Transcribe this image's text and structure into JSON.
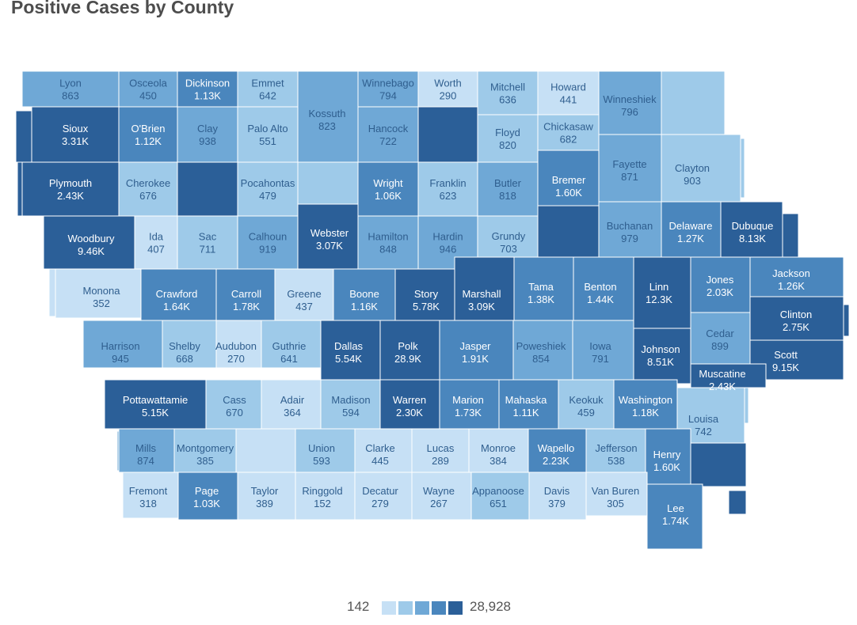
{
  "title": "Positive Cases by County",
  "legend": {
    "min_label": "142",
    "max_label": "28,928",
    "colors": [
      "#c6e0f5",
      "#9ecae9",
      "#6fa8d6",
      "#4a86bd",
      "#2b5f98"
    ]
  },
  "colors": {
    "text_dark": "#ffffff",
    "text_light": "#2f5e8e",
    "border": "#ffffff"
  },
  "counties": [
    {
      "id": "lyon",
      "name": "Lyon",
      "value": "863"
    },
    {
      "id": "osceola",
      "name": "Osceola",
      "value": "450"
    },
    {
      "id": "dickinson",
      "name": "Dickinson",
      "value": "1.13K"
    },
    {
      "id": "emmet",
      "name": "Emmet",
      "value": "642"
    },
    {
      "id": "kossuth",
      "name": "Kossuth",
      "value": "823"
    },
    {
      "id": "winnebago",
      "name": "Winnebago",
      "value": "794"
    },
    {
      "id": "worth",
      "name": "Worth",
      "value": "290"
    },
    {
      "id": "mitchell",
      "name": "Mitchell",
      "value": "636"
    },
    {
      "id": "howard",
      "name": "Howard",
      "value": "441"
    },
    {
      "id": "winneshiek",
      "name": "Winneshiek",
      "value": "796"
    },
    {
      "id": "allamakee",
      "name": "",
      "value": ""
    },
    {
      "id": "sioux",
      "name": "Sioux",
      "value": "3.31K"
    },
    {
      "id": "obrien",
      "name": "O'Brien",
      "value": "1.12K"
    },
    {
      "id": "clay",
      "name": "Clay",
      "value": "938"
    },
    {
      "id": "paloalto",
      "name": "Palo Alto",
      "value": "551"
    },
    {
      "id": "hancock",
      "name": "Hancock",
      "value": "722"
    },
    {
      "id": "cerrogordo",
      "name": "",
      "value": ""
    },
    {
      "id": "floyd",
      "name": "Floyd",
      "value": "820"
    },
    {
      "id": "chickasaw",
      "name": "Chickasaw",
      "value": "682"
    },
    {
      "id": "fayette",
      "name": "Fayette",
      "value": "871"
    },
    {
      "id": "clayton",
      "name": "Clayton",
      "value": "903"
    },
    {
      "id": "plymouth",
      "name": "Plymouth",
      "value": "2.43K"
    },
    {
      "id": "cherokee",
      "name": "Cherokee",
      "value": "676"
    },
    {
      "id": "buenavista",
      "name": "",
      "value": ""
    },
    {
      "id": "pocahontas",
      "name": "Pocahontas",
      "value": "479"
    },
    {
      "id": "humboldt",
      "name": "",
      "value": ""
    },
    {
      "id": "wright",
      "name": "Wright",
      "value": "1.06K"
    },
    {
      "id": "franklin",
      "name": "Franklin",
      "value": "623"
    },
    {
      "id": "butler",
      "name": "Butler",
      "value": "818"
    },
    {
      "id": "bremer",
      "name": "Bremer",
      "value": "1.60K"
    },
    {
      "id": "blackhawk",
      "name": "",
      "value": ""
    },
    {
      "id": "buchanan",
      "name": "Buchanan",
      "value": "979"
    },
    {
      "id": "delaware",
      "name": "Delaware",
      "value": "1.27K"
    },
    {
      "id": "dubuque",
      "name": "Dubuque",
      "value": "8.13K"
    },
    {
      "id": "woodbury",
      "name": "Woodbury",
      "value": "9.46K"
    },
    {
      "id": "ida",
      "name": "Ida",
      "value": "407"
    },
    {
      "id": "sac",
      "name": "Sac",
      "value": "711"
    },
    {
      "id": "calhoun",
      "name": "Calhoun",
      "value": "919"
    },
    {
      "id": "webster",
      "name": "Webster",
      "value": "3.07K"
    },
    {
      "id": "hamilton",
      "name": "Hamilton",
      "value": "848"
    },
    {
      "id": "hardin",
      "name": "Hardin",
      "value": "946"
    },
    {
      "id": "grundy",
      "name": "Grundy",
      "value": "703"
    },
    {
      "id": "monona",
      "name": "Monona",
      "value": "352"
    },
    {
      "id": "crawford",
      "name": "Crawford",
      "value": "1.64K"
    },
    {
      "id": "carroll",
      "name": "Carroll",
      "value": "1.78K"
    },
    {
      "id": "greene",
      "name": "Greene",
      "value": "437"
    },
    {
      "id": "boone",
      "name": "Boone",
      "value": "1.16K"
    },
    {
      "id": "story",
      "name": "Story",
      "value": "5.78K"
    },
    {
      "id": "marshall",
      "name": "Marshall",
      "value": "3.09K"
    },
    {
      "id": "tama",
      "name": "Tama",
      "value": "1.38K"
    },
    {
      "id": "benton",
      "name": "Benton",
      "value": "1.44K"
    },
    {
      "id": "linn",
      "name": "Linn",
      "value": "12.3K"
    },
    {
      "id": "jones",
      "name": "Jones",
      "value": "2.03K"
    },
    {
      "id": "jackson",
      "name": "Jackson",
      "value": "1.26K"
    },
    {
      "id": "clinton",
      "name": "Clinton",
      "value": "2.75K"
    },
    {
      "id": "harrison",
      "name": "Harrison",
      "value": "945"
    },
    {
      "id": "shelby",
      "name": "Shelby",
      "value": "668"
    },
    {
      "id": "audubon",
      "name": "Audubon",
      "value": "270"
    },
    {
      "id": "guthrie",
      "name": "Guthrie",
      "value": "641"
    },
    {
      "id": "dallas",
      "name": "Dallas",
      "value": "5.54K"
    },
    {
      "id": "polk",
      "name": "Polk",
      "value": "28.9K"
    },
    {
      "id": "jasper",
      "name": "Jasper",
      "value": "1.91K"
    },
    {
      "id": "poweshiek",
      "name": "Poweshiek",
      "value": "854"
    },
    {
      "id": "iowa",
      "name": "Iowa",
      "value": "791"
    },
    {
      "id": "johnson",
      "name": "Johnson",
      "value": "8.51K"
    },
    {
      "id": "cedar",
      "name": "Cedar",
      "value": "899"
    },
    {
      "id": "scott",
      "name": "Scott",
      "value": "9.15K"
    },
    {
      "id": "muscatine",
      "name": "Muscatine",
      "value": "2.43K"
    },
    {
      "id": "pottawattamie",
      "name": "Pottawattamie",
      "value": "5.15K"
    },
    {
      "id": "cass",
      "name": "Cass",
      "value": "670"
    },
    {
      "id": "adair",
      "name": "Adair",
      "value": "364"
    },
    {
      "id": "madison",
      "name": "Madison",
      "value": "594"
    },
    {
      "id": "warren",
      "name": "Warren",
      "value": "2.30K"
    },
    {
      "id": "marion",
      "name": "Marion",
      "value": "1.73K"
    },
    {
      "id": "mahaska",
      "name": "Mahaska",
      "value": "1.11K"
    },
    {
      "id": "keokuk",
      "name": "Keokuk",
      "value": "459"
    },
    {
      "id": "washington",
      "name": "Washington",
      "value": "1.18K"
    },
    {
      "id": "louisa",
      "name": "Louisa",
      "value": "742"
    },
    {
      "id": "mills",
      "name": "Mills",
      "value": "874"
    },
    {
      "id": "montgomery",
      "name": "Montgomery",
      "value": "385"
    },
    {
      "id": "adams",
      "name": "",
      "value": ""
    },
    {
      "id": "union",
      "name": "Union",
      "value": "593"
    },
    {
      "id": "clarke",
      "name": "Clarke",
      "value": "445"
    },
    {
      "id": "lucas",
      "name": "Lucas",
      "value": "289"
    },
    {
      "id": "monroe",
      "name": "Monroe",
      "value": "384"
    },
    {
      "id": "wapello",
      "name": "Wapello",
      "value": "2.23K"
    },
    {
      "id": "jefferson",
      "name": "Jefferson",
      "value": "538"
    },
    {
      "id": "henry",
      "name": "Henry",
      "value": "1.60K"
    },
    {
      "id": "desmoines",
      "name": "",
      "value": ""
    },
    {
      "id": "fremont",
      "name": "Fremont",
      "value": "318"
    },
    {
      "id": "page",
      "name": "Page",
      "value": "1.03K"
    },
    {
      "id": "taylor",
      "name": "Taylor",
      "value": "389"
    },
    {
      "id": "ringgold",
      "name": "Ringgold",
      "value": "152"
    },
    {
      "id": "decatur",
      "name": "Decatur",
      "value": "279"
    },
    {
      "id": "wayne",
      "name": "Wayne",
      "value": "267"
    },
    {
      "id": "appanoose",
      "name": "Appanoose",
      "value": "651"
    },
    {
      "id": "davis",
      "name": "Davis",
      "value": "379"
    },
    {
      "id": "vanburen",
      "name": "Van Buren",
      "value": "305"
    },
    {
      "id": "lee",
      "name": "Lee",
      "value": "1.74K"
    }
  ]
}
